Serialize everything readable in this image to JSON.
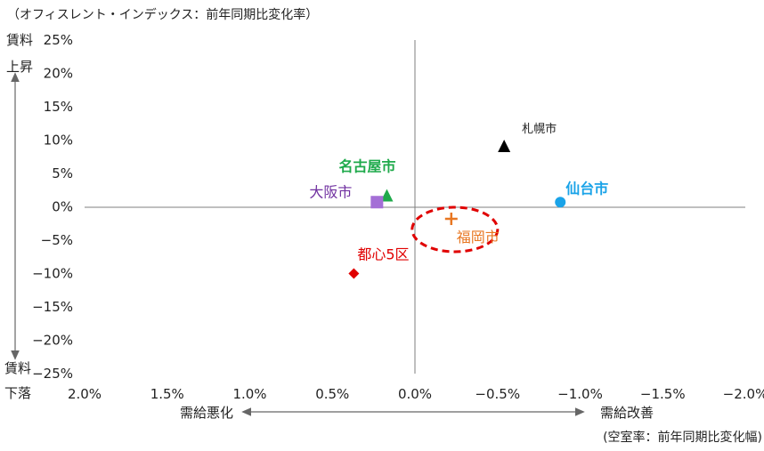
{
  "chart_data": {
    "type": "scatter",
    "y_axis_note": "（オフィスレント・インデックス：前年同期比変化率）",
    "x_axis_note": "(空室率：前年同期比変化幅)",
    "xlim": [
      2.0,
      -2.0
    ],
    "ylim": [
      -25,
      25
    ],
    "x_ticks": [
      2.0,
      1.5,
      1.0,
      0.5,
      0.0,
      -0.5,
      -1.0,
      -1.5,
      -2.0
    ],
    "x_tick_labels": [
      "2.0%",
      "1.5%",
      "1.0%",
      "0.5%",
      "0.0%",
      "−0.5%",
      "−1.0%",
      "−1.5%",
      "−2.0%"
    ],
    "y_ticks": [
      25,
      20,
      15,
      10,
      5,
      0,
      -5,
      -10,
      -15,
      -20,
      -25
    ],
    "y_tick_labels": [
      "25%",
      "20%",
      "15%",
      "10%",
      "5%",
      "0%",
      "−5%",
      "−10%",
      "−15%",
      "−20%",
      "−25%"
    ],
    "x_left_label": "需給悪化",
    "x_right_label": "需給改善",
    "y_top_label_1": "賃料",
    "y_top_label_2": "上昇",
    "y_bottom_label_1": "賃料",
    "y_bottom_label_2": "下落",
    "points": [
      {
        "name": "札幌市",
        "x": -0.54,
        "y": 9.0,
        "marker": "triangle",
        "color": "#000000",
        "label_dx": 20,
        "label_dy": -16,
        "label_class": "lbl-small",
        "label_color": "#222222"
      },
      {
        "name": "仙台市",
        "x": -0.88,
        "y": 0.7,
        "marker": "circle",
        "color": "#1aa3e8",
        "label_dx": 6,
        "label_dy": -10,
        "label_class": "lbl-bold",
        "label_color": "#1aa3e8"
      },
      {
        "name": "名古屋市",
        "x": 0.17,
        "y": 1.6,
        "marker": "triangle",
        "color": "#1faa4b",
        "label_dx": -54,
        "label_dy": -28,
        "label_class": "lbl-bold",
        "label_color": "#1faa4b"
      },
      {
        "name": "大阪市",
        "x": 0.23,
        "y": 0.7,
        "marker": "square",
        "color": "#a46fd6",
        "label_dx": -76,
        "label_dy": -6,
        "label_class": "lbl",
        "label_color": "#7030a0"
      },
      {
        "name": "福岡市",
        "x": -0.22,
        "y": -1.8,
        "marker": "plus",
        "color": "#e87722",
        "label_dx": 6,
        "label_dy": 26,
        "label_class": "lbl",
        "label_color": "#e87722"
      },
      {
        "name": "都心5区",
        "x": 0.37,
        "y": -10.0,
        "marker": "diamond",
        "color": "#e00000",
        "label_dx": 4,
        "label_dy": -16,
        "label_class": "lbl",
        "label_color": "#e00000"
      }
    ],
    "highlight": {
      "target": "福岡市",
      "color": "#e00000"
    },
    "grid": false
  }
}
